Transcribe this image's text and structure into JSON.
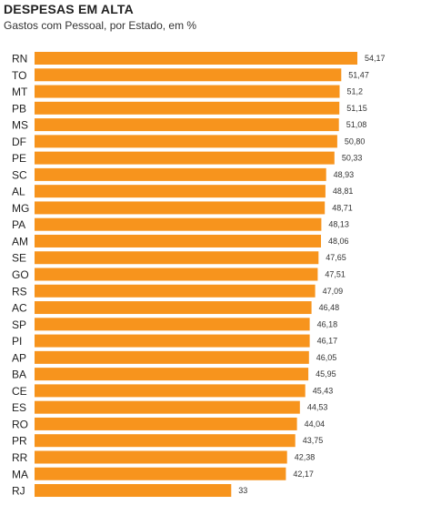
{
  "header": {
    "title": "DESPESAS EM ALTA",
    "subtitle": "Gastos com Pessoal, por Estado, em %"
  },
  "chart_data": {
    "type": "bar",
    "orientation": "horizontal",
    "title": "DESPESAS EM ALTA",
    "subtitle": "Gastos com Pessoal, por Estado, em %",
    "bar_color": "#f7941d",
    "categories": [
      "RN",
      "TO",
      "MT",
      "PB",
      "MS",
      "DF",
      "PE",
      "SC",
      "AL",
      "MG",
      "PA",
      "AM",
      "SE",
      "GO",
      "RS",
      "AC",
      "SP",
      "PI",
      "AP",
      "BA",
      "CE",
      "ES",
      "RO",
      "PR",
      "RR",
      "MA",
      "RJ"
    ],
    "values": [
      54.17,
      51.47,
      51.2,
      51.15,
      51.08,
      50.8,
      50.33,
      48.93,
      48.81,
      48.71,
      48.13,
      48.06,
      47.65,
      47.51,
      47.09,
      46.48,
      46.18,
      46.17,
      46.05,
      45.95,
      45.43,
      44.53,
      44.04,
      43.75,
      42.38,
      42.17,
      33
    ],
    "value_labels": [
      "54,17",
      "51,47",
      "51,2",
      "51,15",
      "51,08",
      "50,80",
      "50,33",
      "48,93",
      "48,81",
      "48,71",
      "48,13",
      "48,06",
      "47,65",
      "47,51",
      "47,09",
      "46,48",
      "46,18",
      "46,17",
      "46,05",
      "45,95",
      "45,43",
      "44,53",
      "44,04",
      "43,75",
      "42,38",
      "42,17",
      "33"
    ],
    "xlim": [
      0,
      54.17
    ],
    "grid": false,
    "legend": "none"
  }
}
